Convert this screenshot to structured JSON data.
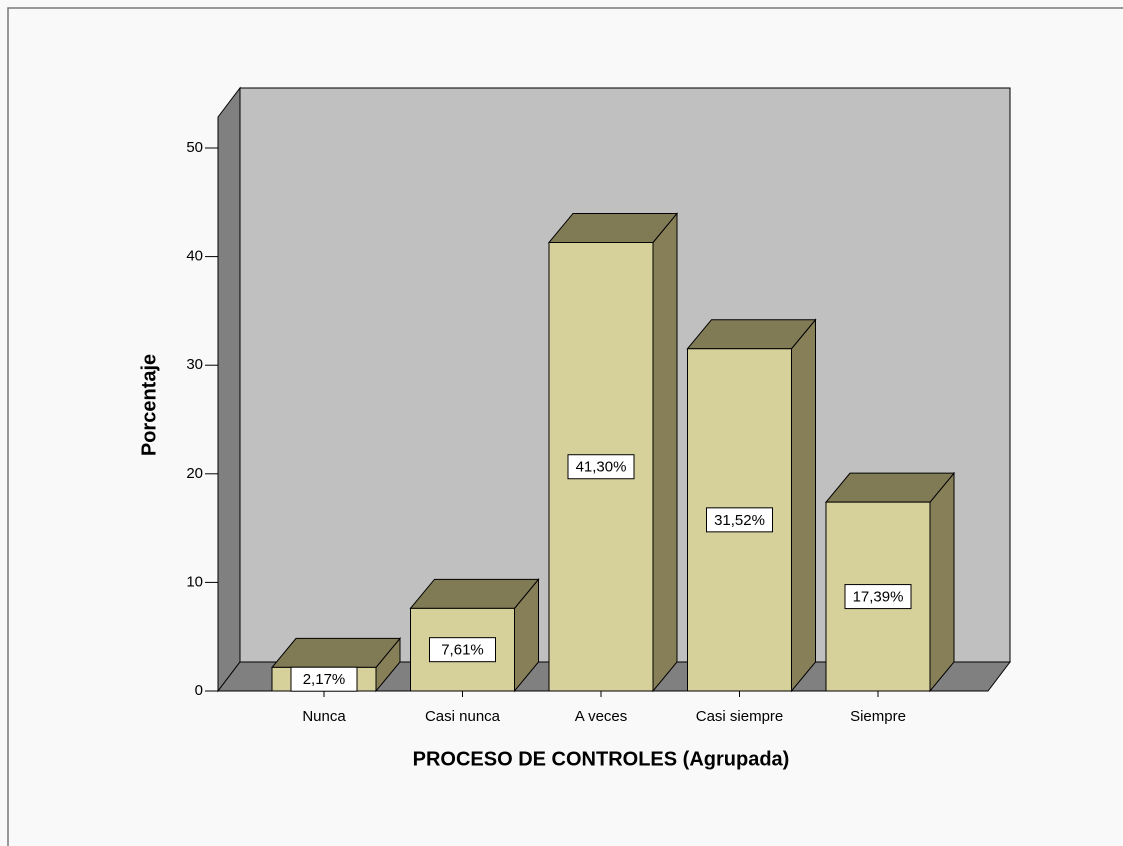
{
  "chart_data": {
    "type": "bar3d",
    "x_label": "PROCESO DE CONTROLES (Agrupada)",
    "y_label": "Porcentaje",
    "categories": [
      "Nunca",
      "Casi nunca",
      "A veces",
      "Casi siempre",
      "Siempre"
    ],
    "values": [
      2.17,
      7.61,
      41.3,
      31.52,
      17.39
    ],
    "value_labels": [
      "2,17%",
      "7,61%",
      "41,30%",
      "31,52%",
      "17,39%"
    ],
    "color": "#d6d09a",
    "ylim": [
      0,
      50
    ],
    "yticks": [
      0,
      10,
      20,
      30,
      40,
      50
    ]
  }
}
